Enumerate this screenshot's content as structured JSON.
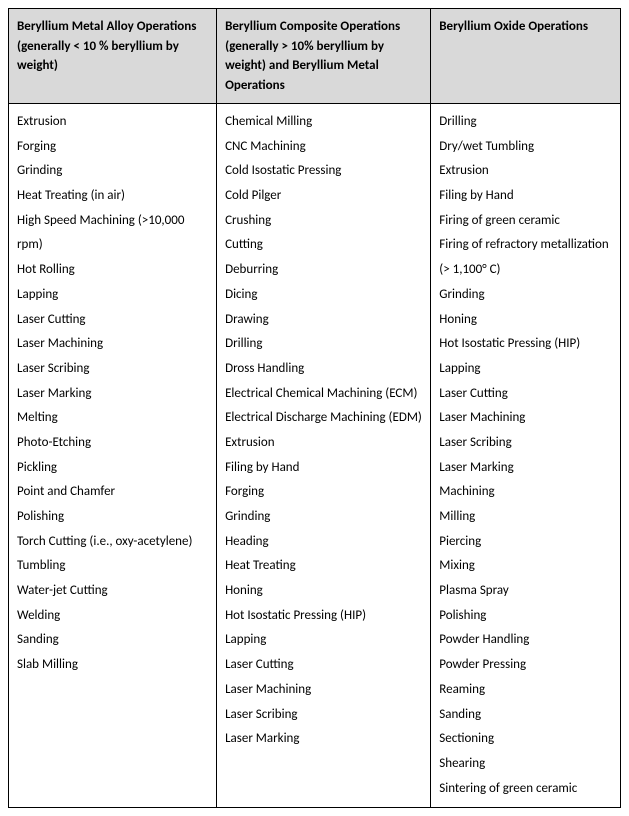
{
  "table": {
    "header_bg": "#d9d9d9",
    "border_color": "#000000",
    "font_family": "Calibri, Arial, sans-serif",
    "font_size_pt": 10,
    "columns": [
      {
        "header": "Beryllium Metal Alloy Operations (generally < 10 % beryllium by weight)"
      },
      {
        "header": "Beryllium Composite Operations (generally > 10% beryllium by weight) and Beryllium Metal Operations"
      },
      {
        "header": "Beryllium Oxide Operations"
      }
    ],
    "rows": {
      "col1": [
        "Extrusion",
        "Forging",
        "Grinding",
        "Heat Treating (in air)",
        "High Speed Machining (>10,000 rpm)",
        "Hot Rolling",
        "Lapping",
        "Laser Cutting",
        "Laser Machining",
        "Laser Scribing",
        "Laser Marking",
        "Melting",
        "Photo-Etching",
        "Pickling",
        "Point and Chamfer",
        "Polishing",
        "Torch Cutting (i.e., oxy-acetylene)",
        "Tumbling",
        "Water-jet Cutting",
        "Welding",
        "Sanding",
        "Slab Milling"
      ],
      "col2": [
        "Chemical Milling",
        "CNC Machining",
        "Cold Isostatic Pressing",
        "Cold Pilger",
        "Crushing",
        "Cutting",
        "Deburring",
        "Dicing",
        "Drawing",
        "Drilling",
        "Dross Handling",
        "Electrical Chemical Machining (ECM)",
        "Electrical Discharge Machining (EDM)",
        "Extrusion",
        "Filing by Hand",
        "Forging",
        "Grinding",
        "Heading",
        "Heat Treating",
        "Honing",
        "Hot Isostatic Pressing (HIP)",
        "Lapping",
        "Laser Cutting",
        "Laser Machining",
        "Laser Scribing",
        "Laser Marking"
      ],
      "col3": [
        "Drilling",
        "Dry/wet Tumbling",
        "Extrusion",
        "Filing by Hand",
        "Firing of green ceramic",
        "Firing of refractory metallization (> 1,100° C)",
        "Grinding",
        "Honing",
        "Hot Isostatic Pressing (HIP)",
        "Lapping",
        "Laser Cutting",
        "Laser Machining",
        "Laser Scribing",
        "Laser Marking",
        "Machining",
        "Milling",
        "Piercing",
        "Mixing",
        "Plasma Spray",
        "Polishing",
        "Powder Handling",
        "Powder Pressing",
        "Reaming",
        "Sanding",
        "Sectioning",
        "Shearing",
        "Sintering of green ceramic"
      ]
    }
  }
}
